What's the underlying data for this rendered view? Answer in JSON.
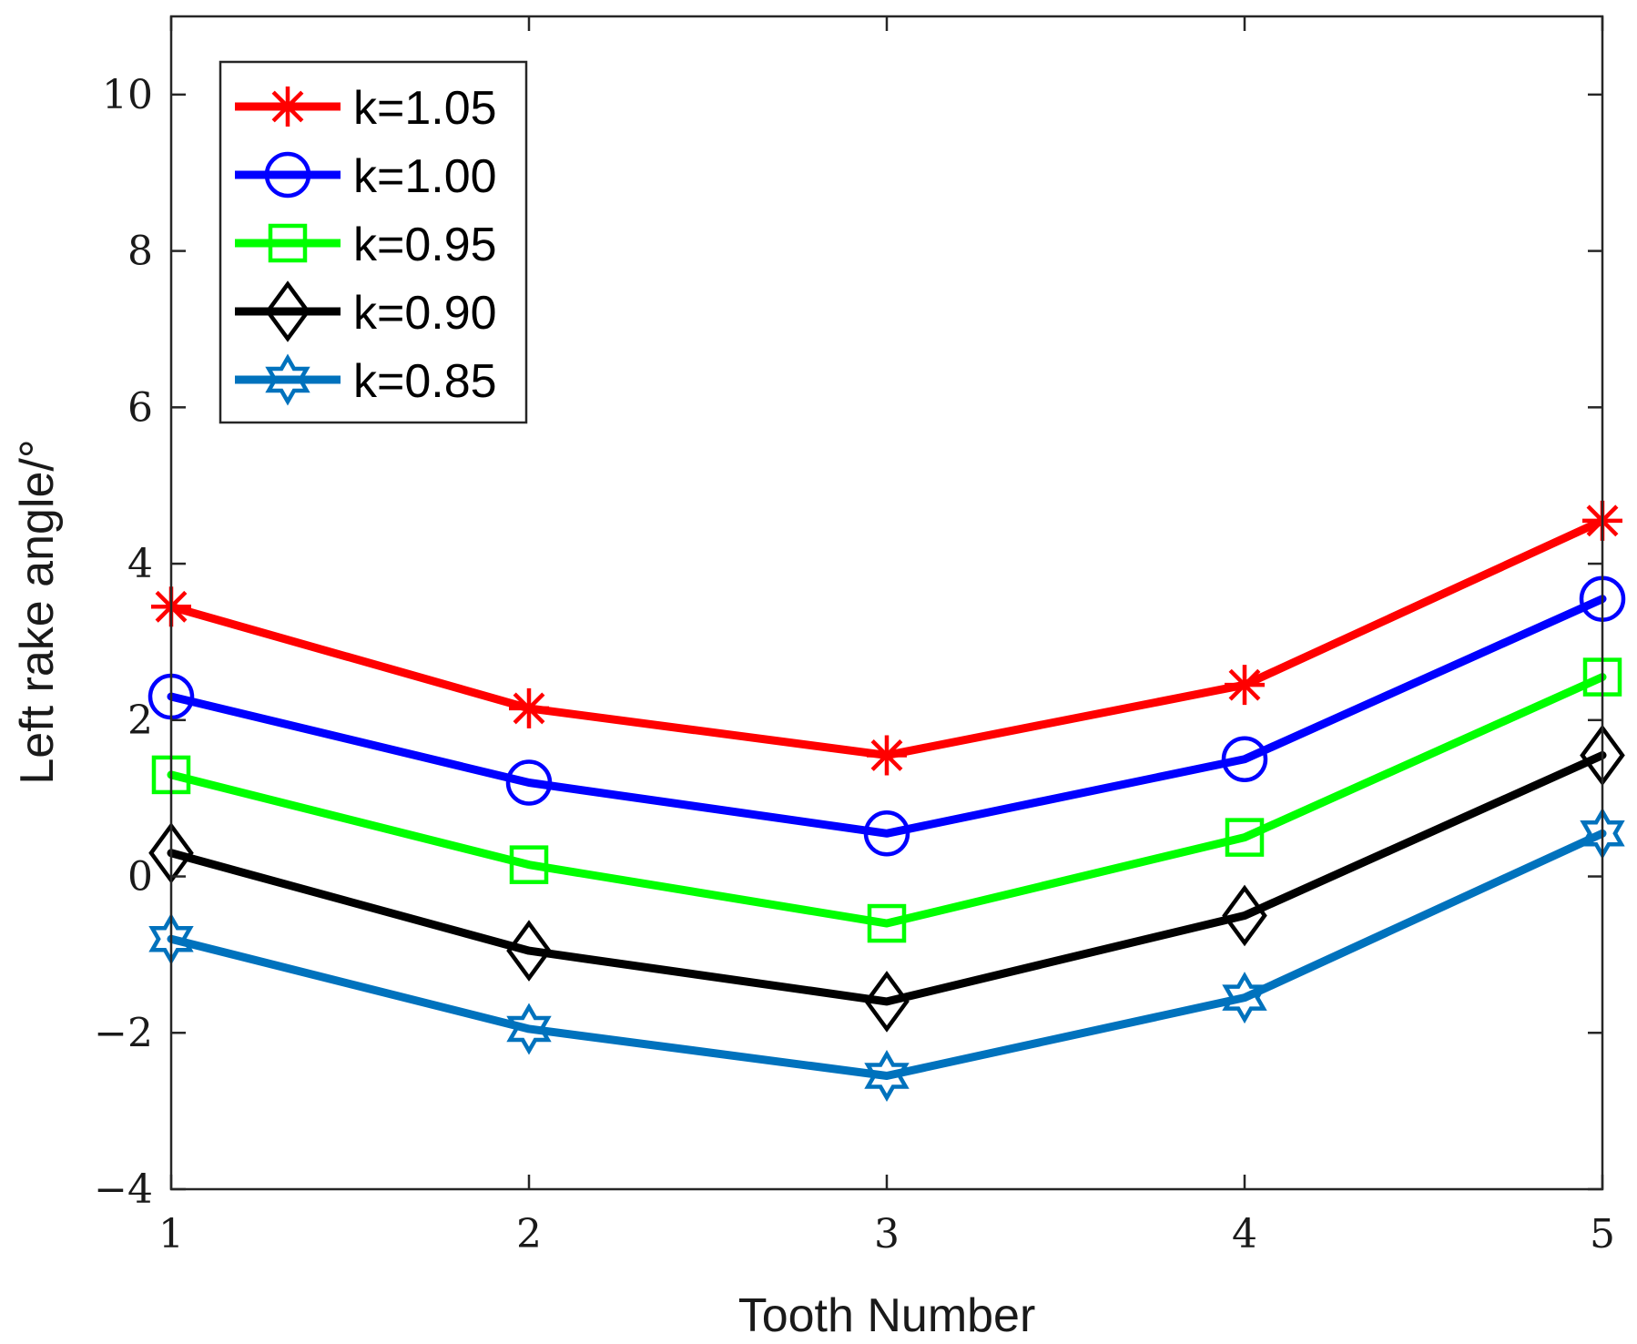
{
  "chart_data": {
    "type": "line",
    "title": "",
    "xlabel": "Tooth Number",
    "ylabel": "Left rake angle/°",
    "x": [
      1,
      2,
      3,
      4,
      5
    ],
    "xlim": [
      1,
      5
    ],
    "ylim": [
      -4,
      11
    ],
    "xticks": [
      "1",
      "2",
      "3",
      "4",
      "5"
    ],
    "yticks": [
      -4,
      -2,
      0,
      2,
      4,
      6,
      8,
      10
    ],
    "ytick_labels": [
      "−4",
      "−2",
      "0",
      "2",
      "4",
      "6",
      "8",
      "10"
    ],
    "grid": false,
    "legend_position": "top-left",
    "series": [
      {
        "name": "k=1.05",
        "color": "#ff0000",
        "marker": "asterisk",
        "values": [
          3.45,
          2.15,
          1.55,
          2.45,
          4.55
        ]
      },
      {
        "name": "k=1.00",
        "color": "#0000ff",
        "marker": "circle",
        "values": [
          2.3,
          1.2,
          0.55,
          1.5,
          3.55
        ]
      },
      {
        "name": "k=0.95",
        "color": "#00ff00",
        "marker": "square",
        "values": [
          1.3,
          0.15,
          -0.6,
          0.5,
          2.55
        ]
      },
      {
        "name": "k=0.90",
        "color": "#000000",
        "marker": "diamond",
        "values": [
          0.3,
          -0.95,
          -1.6,
          -0.5,
          1.55
        ]
      },
      {
        "name": "k=0.85",
        "color": "#0072bd",
        "marker": "hexagram",
        "values": [
          -0.8,
          -1.95,
          -2.55,
          -1.55,
          0.55
        ]
      }
    ]
  }
}
